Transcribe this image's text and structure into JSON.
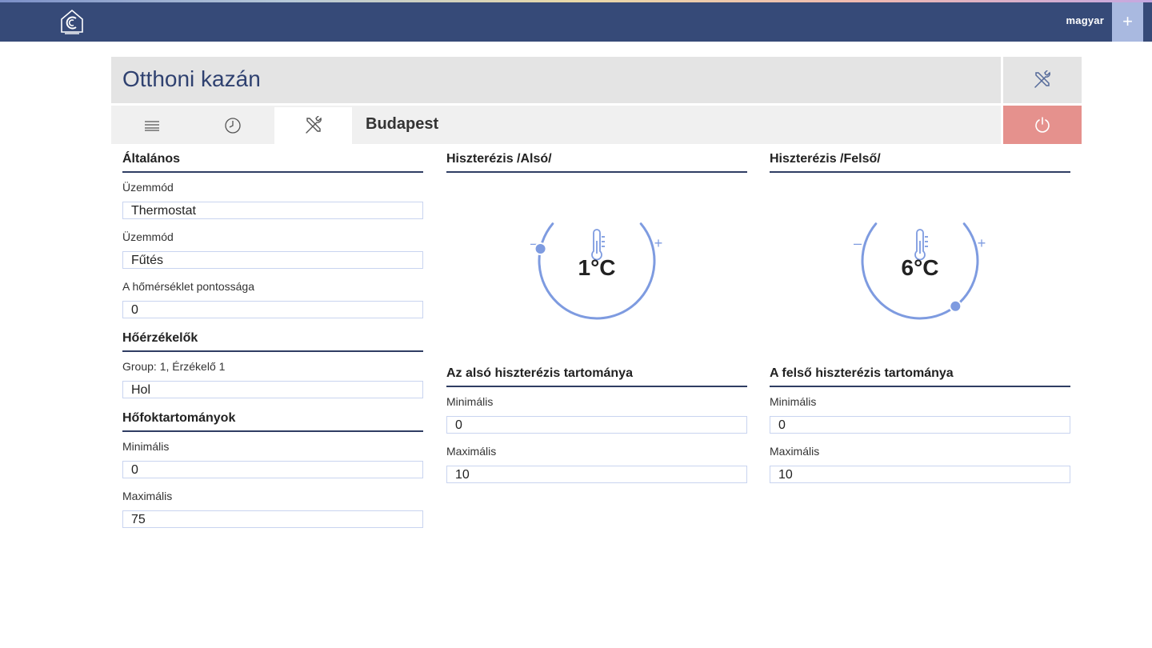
{
  "app": {
    "language": "magyar",
    "plus_label": "+"
  },
  "header": {
    "title": "Otthoni kazán",
    "location": "Budapest"
  },
  "tabs": [
    {
      "icon": "list-icon"
    },
    {
      "icon": "clock-icon"
    },
    {
      "icon": "tools-icon",
      "active": true
    }
  ],
  "colors": {
    "topbar": "#364a78",
    "accent": "#7e9be0",
    "power": "#e5918d"
  },
  "general": {
    "heading": "Általános",
    "mode1_label": "Üzemmód",
    "mode1_value": "Thermostat",
    "mode2_label": "Üzemmód",
    "mode2_value": "Fűtés",
    "accuracy_label": "A hőmérséklet pontossága",
    "accuracy_value": "0"
  },
  "sensors": {
    "heading": "Hőérzékelők",
    "sensor_label": "Group: 1, Érzékelő 1",
    "sensor_value": "Hol"
  },
  "temp_ranges": {
    "heading": "Hőfoktartományok",
    "min_label": "Minimális",
    "min_value": "0",
    "max_label": "Maximális",
    "max_value": "75"
  },
  "hyst_lower": {
    "heading": "Hiszterézis /Alsó/",
    "value_text": "1°C",
    "value": 1,
    "minus": "–",
    "plus": "+",
    "range_heading": "Az alsó hiszterézis tartománya",
    "min_label": "Minimális",
    "min_value": "0",
    "max_label": "Maximális",
    "max_value": "10"
  },
  "hyst_upper": {
    "heading": "Hiszterézis /Felső/",
    "value_text": "6°C",
    "value": 6,
    "minus": "–",
    "plus": "+",
    "range_heading": "A felső hiszterézis tartománya",
    "min_label": "Minimális",
    "min_value": "0",
    "max_label": "Maximális",
    "max_value": "10"
  }
}
